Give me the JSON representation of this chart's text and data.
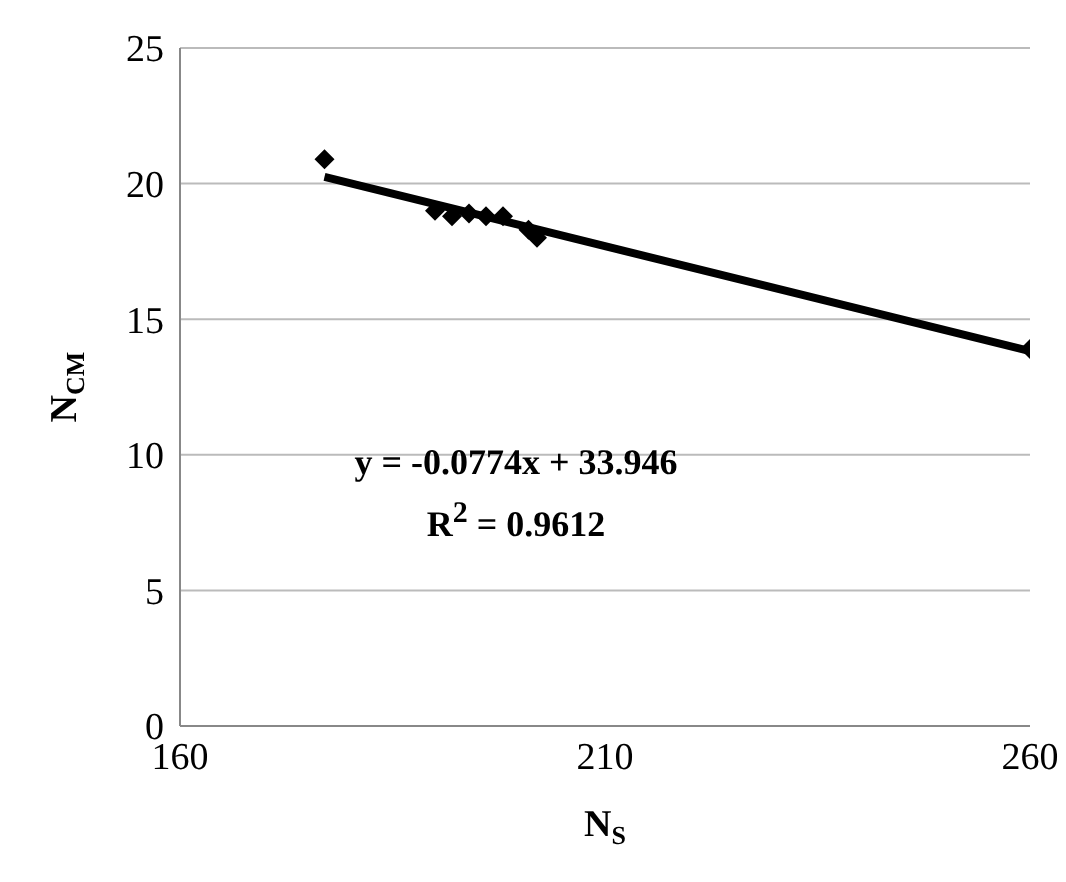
{
  "chart_data": {
    "type": "scatter",
    "xlabel": "N$_{S}$",
    "ylabel": "N$_{CM}$",
    "xlim": [
      160,
      260
    ],
    "xticks": [
      160,
      210,
      260
    ],
    "ylim": [
      0,
      25
    ],
    "yticks": [
      0,
      5,
      10,
      15,
      20,
      25
    ],
    "grid": "y",
    "legend": false,
    "series": [
      {
        "color": "#000000",
        "marker": "diamond",
        "x": [
          177,
          190,
          192,
          194,
          196,
          198,
          201,
          202,
          260
        ],
        "values": [
          20.9,
          19.0,
          18.8,
          18.9,
          18.8,
          18.8,
          18.3,
          18.0,
          13.9
        ]
      },
      {
        "type": "line",
        "color": "#000000",
        "marker": "none",
        "line_style": "solid",
        "x": [
          177,
          260
        ],
        "values": [
          20.25,
          13.82
        ]
      }
    ],
    "annotations": [
      "y = -0.0774x + 33.946",
      "R$^{2}$ = 0.9612"
    ]
  }
}
